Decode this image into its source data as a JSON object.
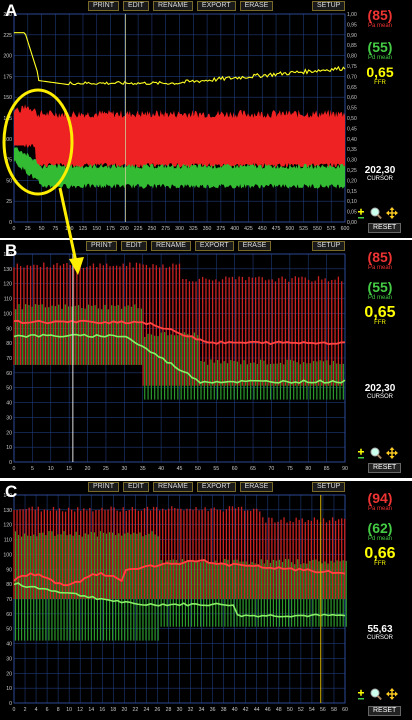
{
  "toolbar": {
    "print": "PRINT",
    "edit": "EDIT",
    "rename": "RENAME",
    "export": "EXPORT",
    "erase": "ERASE",
    "setup": "SETUP"
  },
  "panels": [
    {
      "letter": "A",
      "pa_value": "(85)",
      "pa_label": "Pa mean",
      "pd_value": "(55)",
      "pd_label": "Pd mean",
      "ffr_value": "0,65",
      "ffr_label": "FFR",
      "cursor_value": "202,30",
      "cursor_label": "CURSOR",
      "reset": "RESET",
      "x_ticks": [
        "0",
        "25",
        "50",
        "75",
        "100",
        "125",
        "150",
        "175",
        "200",
        "225",
        "250",
        "275",
        "300",
        "325",
        "350",
        "375",
        "400",
        "425",
        "450",
        "475",
        "500",
        "525",
        "550",
        "575",
        "600"
      ],
      "y_ticks_left": [
        "0",
        "25",
        "50",
        "75",
        "100",
        "125",
        "150",
        "175",
        "200",
        "225",
        "250"
      ],
      "y_ticks_right": [
        "0,00",
        "0,05",
        "0,10",
        "0,15",
        "0,20",
        "0,25",
        "0,30",
        "0,35",
        "0,40",
        "0,45",
        "0,50",
        "0,55",
        "0,60",
        "0,65",
        "0,70",
        "0,75",
        "0,80",
        "0,85",
        "0,90",
        "0,95",
        "1,00"
      ]
    },
    {
      "letter": "B",
      "pa_value": "(85)",
      "pa_label": "Pa mean",
      "pd_value": "(55)",
      "pd_label": "Pd mean",
      "ffr_value": "0,65",
      "ffr_label": "FFR",
      "cursor_value": "202,30",
      "cursor_label": "CURSOR",
      "reset": "RESET",
      "x_ticks": [
        "0",
        "5",
        "10",
        "15",
        "20",
        "25",
        "30",
        "35",
        "40",
        "45",
        "50",
        "55",
        "60",
        "65",
        "70",
        "75",
        "80",
        "85",
        "90"
      ],
      "y_ticks_left": [
        "0",
        "10",
        "20",
        "30",
        "40",
        "50",
        "60",
        "70",
        "80",
        "90",
        "100",
        "110",
        "120",
        "130",
        "140"
      ]
    },
    {
      "letter": "C",
      "pa_value": "(94)",
      "pa_label": "Pa mean",
      "pd_value": "(62)",
      "pd_label": "Pd mean",
      "ffr_value": "0,66",
      "ffr_label": "FFR",
      "cursor_value": "55,63",
      "cursor_label": "CURSOR",
      "reset": "RESET",
      "x_ticks": [
        "0",
        "2",
        "4",
        "6",
        "8",
        "10",
        "12",
        "14",
        "16",
        "18",
        "20",
        "22",
        "24",
        "26",
        "28",
        "30",
        "32",
        "34",
        "36",
        "38",
        "40",
        "42",
        "44",
        "46",
        "48",
        "50",
        "52",
        "54",
        "56",
        "58",
        "60"
      ],
      "y_ticks_left": [
        "0",
        "10",
        "20",
        "30",
        "40",
        "50",
        "60",
        "70",
        "80",
        "90",
        "100",
        "110",
        "120",
        "130",
        "140"
      ]
    }
  ],
  "colors": {
    "pa": "#ee2222",
    "pd": "#33bb33",
    "ffr": "#ffff22",
    "grid": "#1f3a7a",
    "highlight": "#ffee00"
  }
}
